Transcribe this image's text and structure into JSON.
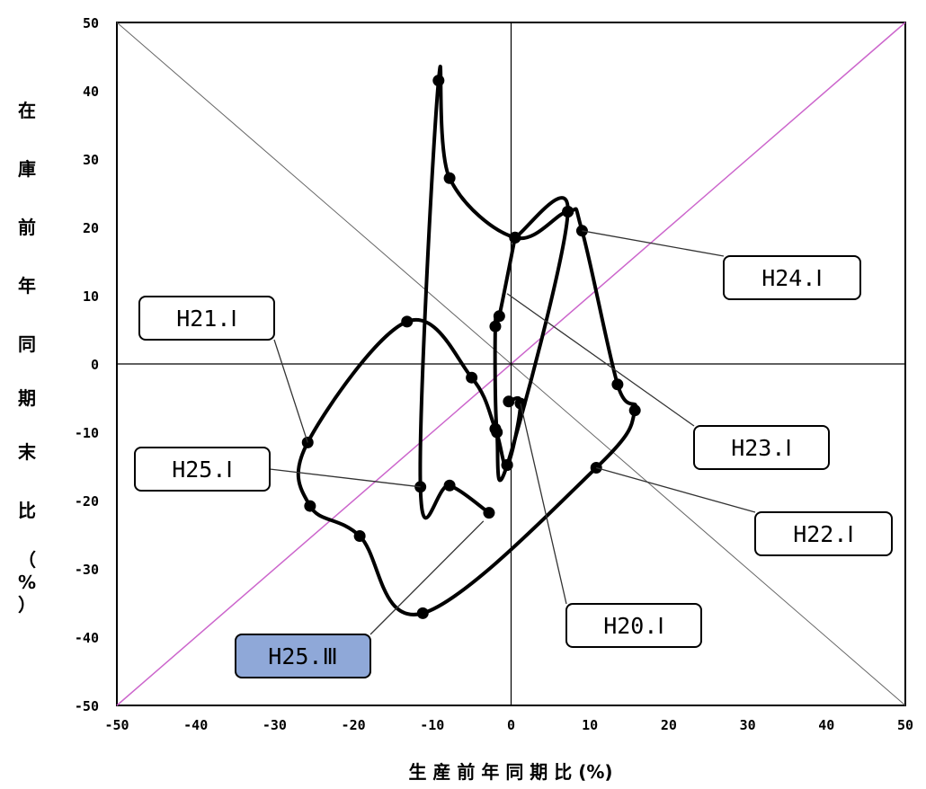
{
  "chart_data": {
    "type": "line",
    "title": "",
    "xlabel": "生 産 前 年 同 期 比 (%)",
    "ylabel": "在 庫 前 年 同 期 末 比 （%）",
    "xlim": [
      -50,
      50
    ],
    "ylim": [
      -50,
      50
    ],
    "x_ticks": [
      "-50",
      "-40",
      "-30",
      "-20",
      "-10",
      "0",
      "10",
      "20",
      "30",
      "40",
      "50"
    ],
    "y_ticks": [
      "50",
      "40",
      "30",
      "20",
      "10",
      "0",
      "-10",
      "-20",
      "-30",
      "-40",
      "-50"
    ],
    "grid": false,
    "colors": {
      "line": "#000000",
      "diagonal": "#cc66cc",
      "reference": "#666666",
      "highlight": "#8fa8d8"
    },
    "series": [
      {
        "points": [
          [
            -0.3,
            -5.5
          ],
          [
            1.2,
            -5.8
          ],
          [
            -0.5,
            -14.8
          ],
          [
            -2.0,
            -9.5
          ],
          [
            -5.0,
            -2.0
          ],
          [
            -13.2,
            6.2
          ],
          [
            -25.8,
            -11.5
          ],
          [
            -25.5,
            -20.8
          ],
          [
            -19.2,
            -25.2
          ],
          [
            -11.2,
            -36.5
          ],
          [
            10.8,
            -15.2
          ],
          [
            15.7,
            -6.8
          ],
          [
            13.5,
            -3.0
          ],
          [
            9.0,
            19.5
          ],
          [
            7.2,
            22.3
          ],
          [
            0.5,
            18.5
          ],
          [
            -7.8,
            27.2
          ],
          [
            -9.2,
            41.5
          ],
          [
            -11.5,
            -18.0
          ],
          [
            -7.8,
            -17.8
          ],
          [
            -2.8,
            -21.8
          ]
        ],
        "extra_path": [
          [
            0.5,
            18.5
          ],
          [
            -1.5,
            7.0
          ],
          [
            -2.0,
            5.5
          ],
          [
            -1.8,
            -10.0
          ],
          [
            -0.5,
            -14.8
          ],
          [
            7.2,
            22.3
          ],
          [
            0.5,
            18.5
          ]
        ]
      }
    ],
    "callouts": [
      {
        "label": "H24.Ⅰ",
        "target": [
          9.0,
          19.5
        ]
      },
      {
        "label": "H21.Ⅰ",
        "target": [
          -25.8,
          -11.5
        ]
      },
      {
        "label": "H23.Ⅰ",
        "target": [
          -0.5,
          10.3
        ]
      },
      {
        "label": "H25.Ⅰ",
        "target": [
          -11.5,
          -18.0
        ]
      },
      {
        "label": "H22.Ⅰ",
        "target": [
          10.8,
          -15.2
        ]
      },
      {
        "label": "H20.Ⅰ",
        "target": [
          1.2,
          -5.8
        ]
      },
      {
        "label": "H25.Ⅲ",
        "target": [
          -3.5,
          -23.0
        ],
        "highlight": true
      }
    ]
  }
}
